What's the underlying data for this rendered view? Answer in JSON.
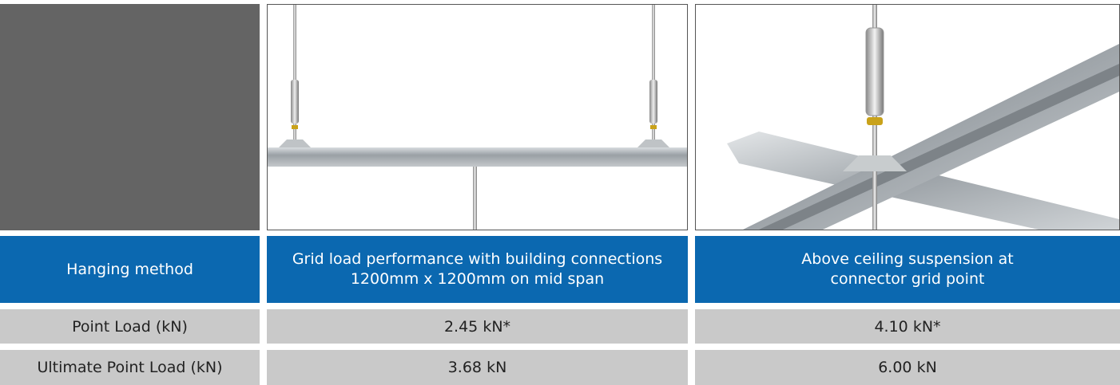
{
  "table": {
    "header": [
      "Hanging method",
      "Grid load performance with building connections 1200mm x 1200mm on mid span",
      "Above ceiling suspension at connector grid point"
    ],
    "rows": [
      [
        "Point Load (kN)",
        "2.45 kN*",
        "4.10 kN*"
      ],
      [
        "Ultimate Point Load (kN)",
        "3.68 kN",
        "6.00 kN"
      ]
    ]
  }
}
